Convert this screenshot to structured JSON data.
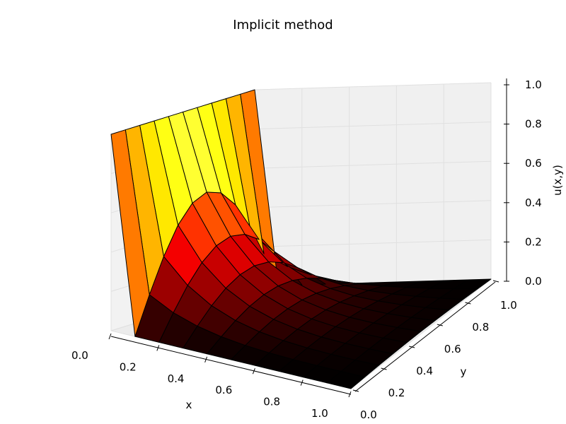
{
  "chart_data": {
    "type": "surface3d",
    "title": "Implicit method",
    "xlabel": "x",
    "ylabel": "y",
    "zlabel": "u(x,y)",
    "xlim": [
      0,
      1
    ],
    "ylim": [
      0,
      1
    ],
    "zlim": [
      0,
      1
    ],
    "x_ticks": [
      "0.0",
      "0.2",
      "0.4",
      "0.6",
      "0.8",
      "1.0"
    ],
    "y_ticks": [
      "0.0",
      "0.2",
      "0.4",
      "0.6",
      "0.8",
      "1.0"
    ],
    "z_ticks": [
      "0.0",
      "0.2",
      "0.4",
      "0.6",
      "0.8",
      "1.0"
    ],
    "grid": true,
    "colormap": "hot",
    "grid_size": [
      11,
      11
    ],
    "boundary_value_at_x0": 1.0
  }
}
